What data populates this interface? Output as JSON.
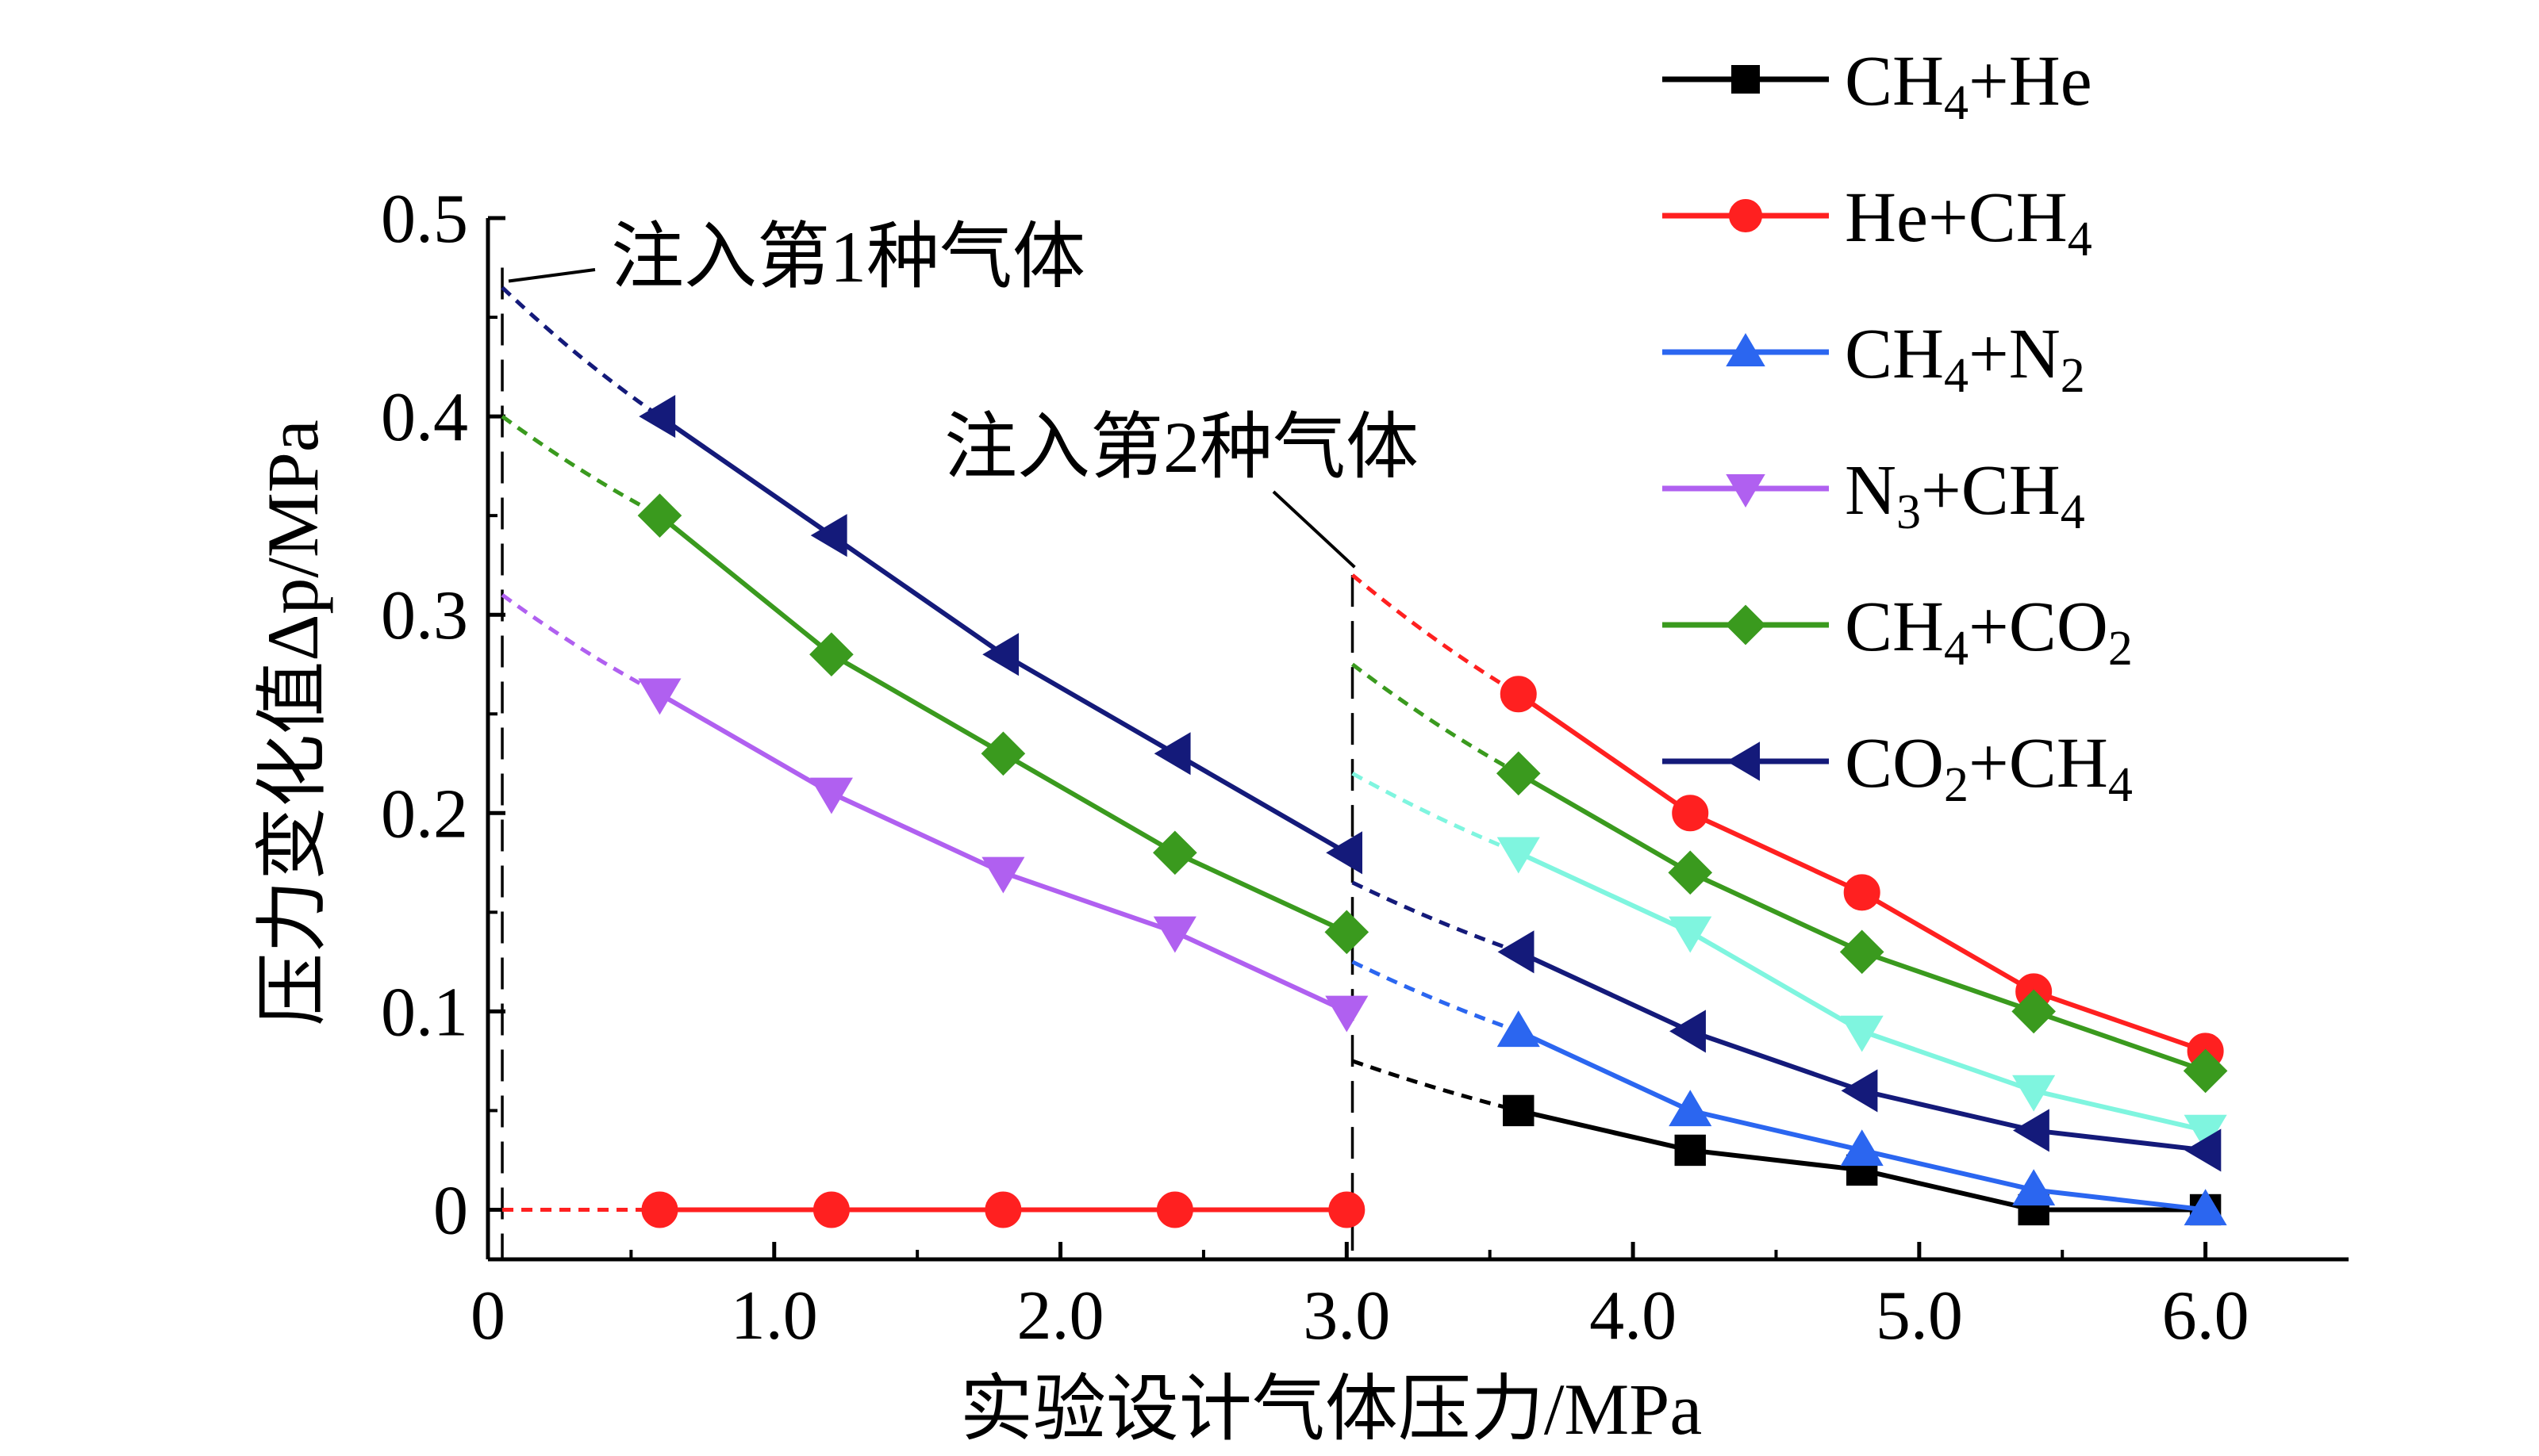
{
  "chart_data": {
    "type": "line",
    "xlabel": "实验设计气体压力/MPa",
    "ylabel": "压力变化值Δp/MPa",
    "xlim": [
      0,
      6.5
    ],
    "ylim": [
      -0.025,
      0.5
    ],
    "x_ticks": [
      "0",
      "1.0",
      "2.0",
      "3.0",
      "4.0",
      "5.0",
      "6.0"
    ],
    "y_ticks": [
      "0",
      "0.1",
      "0.2",
      "0.3",
      "0.4",
      "0.5"
    ],
    "grid": false,
    "legend_position": "top-right",
    "annotations": [
      {
        "text": "注入第1种气体",
        "x": 0.05,
        "y": 0.465
      },
      {
        "text": "注入第2种气体",
        "x": 3.05,
        "y": 0.32
      }
    ],
    "series": [
      {
        "name_parts": [
          [
            "CH",
            ""
          ],
          [
            "4",
            "sub"
          ],
          [
            "+He",
            ""
          ]
        ],
        "color": "#000000",
        "marker": "square",
        "points": [
          [
            3.6,
            0.05
          ],
          [
            4.2,
            0.03
          ],
          [
            4.8,
            0.02
          ],
          [
            5.4,
            0.0
          ],
          [
            6.0,
            0.0
          ]
        ],
        "dotted_from": [
          3.02,
          0.075
        ]
      },
      {
        "name_parts": [
          [
            "He+CH",
            ""
          ],
          [
            "4",
            "sub"
          ]
        ],
        "color": "#ff2020",
        "marker": "circle",
        "points": [
          [
            0.6,
            0.0
          ],
          [
            1.2,
            0.0
          ],
          [
            1.8,
            0.0
          ],
          [
            2.4,
            0.0
          ],
          [
            3.0,
            0.0
          ]
        ],
        "dotted_from": [
          0.05,
          0.0
        ],
        "points_after": [
          [
            3.6,
            0.26
          ],
          [
            4.2,
            0.2
          ],
          [
            4.8,
            0.16
          ],
          [
            5.4,
            0.11
          ],
          [
            6.0,
            0.08
          ]
        ],
        "dotted_after_from": [
          3.02,
          0.32
        ]
      },
      {
        "name_parts": [
          [
            "CH",
            ""
          ],
          [
            "4",
            "sub"
          ],
          [
            "+N",
            ""
          ],
          [
            "2",
            "sub"
          ]
        ],
        "color": "#2b66f0",
        "marker": "triangle-up",
        "points": [
          [
            3.6,
            0.09
          ],
          [
            4.2,
            0.05
          ],
          [
            4.8,
            0.03
          ],
          [
            5.4,
            0.01
          ],
          [
            6.0,
            0.0
          ]
        ],
        "dotted_from": [
          3.02,
          0.125
        ]
      },
      {
        "name_parts": [
          [
            "N",
            ""
          ],
          [
            "3",
            "sub"
          ],
          [
            "+CH",
            ""
          ],
          [
            "4",
            "sub"
          ]
        ],
        "color": "#b060f0",
        "marker": "triangle-down",
        "points": [
          [
            0.6,
            0.26
          ],
          [
            1.2,
            0.21
          ],
          [
            1.8,
            0.17
          ],
          [
            2.4,
            0.14
          ],
          [
            3.0,
            0.1
          ]
        ],
        "dotted_from": [
          0.05,
          0.31
        ],
        "points_after": [
          [
            3.6,
            0.18
          ],
          [
            4.2,
            0.14
          ],
          [
            4.8,
            0.09
          ],
          [
            5.4,
            0.06
          ],
          [
            6.0,
            0.04
          ]
        ],
        "after_color": "#7ff5df",
        "dotted_after_from": [
          3.02,
          0.22
        ]
      },
      {
        "name_parts": [
          [
            "CH",
            ""
          ],
          [
            "4",
            "sub"
          ],
          [
            "+CO",
            ""
          ],
          [
            "2",
            "sub"
          ]
        ],
        "color": "#3a9a1e",
        "marker": "diamond",
        "points": [
          [
            0.6,
            0.35
          ],
          [
            1.2,
            0.28
          ],
          [
            1.8,
            0.23
          ],
          [
            2.4,
            0.18
          ],
          [
            3.0,
            0.14
          ]
        ],
        "dotted_from": [
          0.05,
          0.4
        ],
        "points_after": [
          [
            3.6,
            0.22
          ],
          [
            4.2,
            0.17
          ],
          [
            4.8,
            0.13
          ],
          [
            5.4,
            0.1
          ],
          [
            6.0,
            0.07
          ]
        ],
        "dotted_after_from": [
          3.02,
          0.275
        ]
      },
      {
        "name_parts": [
          [
            "CO",
            ""
          ],
          [
            "2",
            "sub"
          ],
          [
            "+CH",
            ""
          ],
          [
            "4",
            "sub"
          ]
        ],
        "color": "#141a7a",
        "marker": "triangle-left",
        "points": [
          [
            0.6,
            0.4
          ],
          [
            1.2,
            0.34
          ],
          [
            1.8,
            0.28
          ],
          [
            2.4,
            0.23
          ],
          [
            3.0,
            0.18
          ]
        ],
        "dotted_from": [
          0.05,
          0.465
        ],
        "points_after": [
          [
            3.6,
            0.13
          ],
          [
            4.2,
            0.09
          ],
          [
            4.8,
            0.06
          ],
          [
            5.4,
            0.04
          ],
          [
            6.0,
            0.03
          ]
        ],
        "dotted_after_from": [
          3.02,
          0.165
        ]
      }
    ]
  }
}
